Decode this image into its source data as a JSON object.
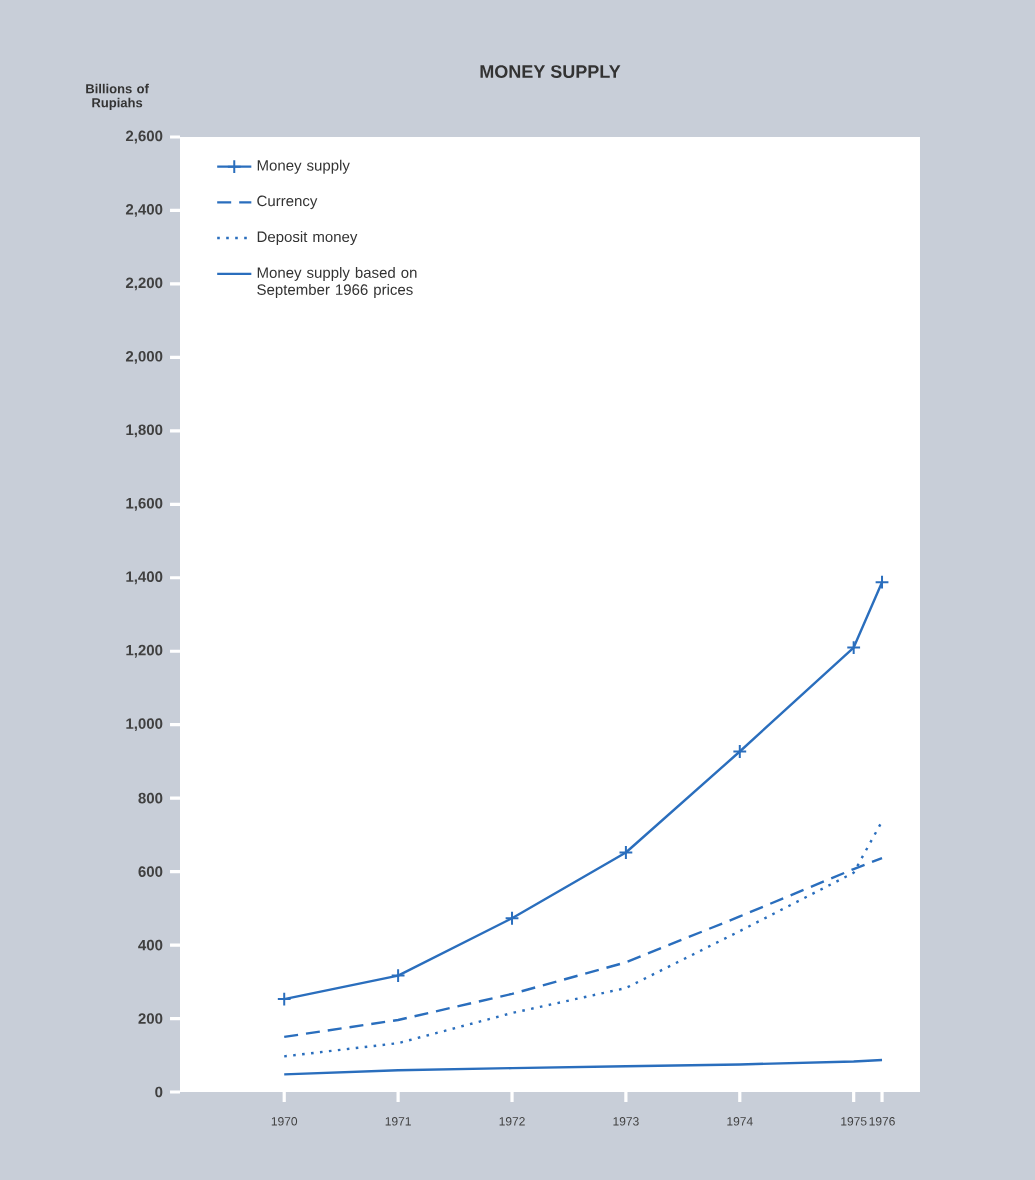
{
  "chart_data": {
    "type": "line",
    "title": "MONEY SUPPLY",
    "ylabel": "Billions of Rupiahs",
    "x": [
      "1970-12",
      "1971-12",
      "1972-12",
      "1973-12",
      "1974-12",
      "1975-12",
      "1976-03"
    ],
    "xlim": [
      "1970-01",
      "1976-07"
    ],
    "xticks": [
      {
        "value": "1970-12",
        "label": "1970"
      },
      {
        "value": "1971-12",
        "label": "1971"
      },
      {
        "value": "1972-12",
        "label": "1972"
      },
      {
        "value": "1973-12",
        "label": "1973"
      },
      {
        "value": "1974-12",
        "label": "1974"
      },
      {
        "value": "1975-12",
        "label": "1975"
      },
      {
        "value": "1976-03",
        "label": "1976"
      }
    ],
    "ylim": [
      0,
      2600
    ],
    "yticks": [
      0,
      200,
      400,
      600,
      800,
      {
        "value": 1000,
        "label": "1,000"
      },
      {
        "value": 1200,
        "label": "1,200"
      },
      {
        "value": 1400,
        "label": "1,400"
      },
      {
        "value": 1600,
        "label": "1,600"
      },
      {
        "value": 1800,
        "label": "1,800"
      },
      {
        "value": 2000,
        "label": "2,000"
      },
      {
        "value": 2200,
        "label": "2,200"
      },
      {
        "value": 2400,
        "label": "2,400"
      },
      {
        "value": 2600,
        "label": "2,600"
      }
    ],
    "grid": false,
    "legend": "top left",
    "series": [
      {
        "name": "Money supply",
        "color": "#2a6ebd",
        "marker": "cross",
        "line_style": "solid",
        "values": [
          253,
          317,
          473,
          652,
          927,
          1210,
          1388
        ]
      },
      {
        "name": "Currency",
        "color": "#2a6ebd",
        "marker": "none",
        "line_style": "dashed",
        "values": [
          150,
          196,
          267,
          353,
          478,
          607,
          637
        ]
      },
      {
        "name": "Deposit money",
        "color": "#2a6ebd",
        "marker": "none",
        "line_style": "dotted",
        "values": [
          97,
          133,
          215,
          283,
          438,
          597,
          737
        ]
      },
      {
        "name": "Money supply based on September 1966 prices",
        "color": "#2a6ebd",
        "marker": "none",
        "line_style": "solid",
        "values": [
          48,
          59,
          65,
          70,
          75,
          83,
          87
        ]
      }
    ]
  }
}
